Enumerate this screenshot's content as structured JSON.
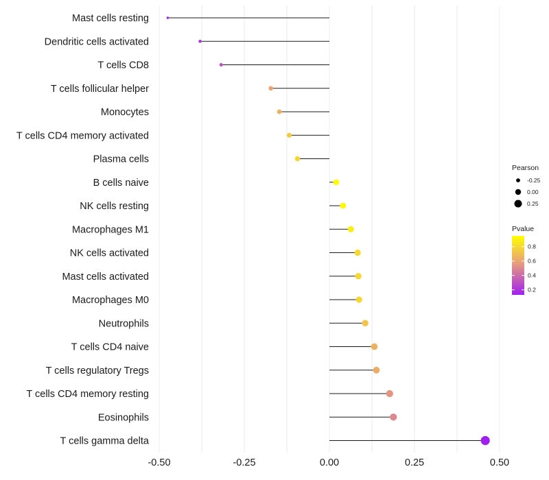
{
  "chart_data": {
    "type": "lollipop",
    "title": "",
    "xlabel": "",
    "ylabel": "",
    "xlim": [
      -0.5,
      0.5
    ],
    "x_ticks": [
      -0.5,
      -0.25,
      0.0,
      0.25,
      0.5
    ],
    "x_tick_labels": [
      "-0.50",
      "-0.25",
      "0.00",
      "0.25",
      "0.50"
    ],
    "baseline": 0,
    "grid": true,
    "categories": [
      "Mast cells resting",
      "Dendritic cells activated",
      "T cells CD8",
      "T cells follicular helper",
      "Monocytes",
      "T cells CD4 memory activated",
      "Plasma cells",
      "B cells naive",
      "NK cells resting",
      "Macrophages M1",
      "NK cells activated",
      "Mast cells activated",
      "Macrophages M0",
      "Neutrophils",
      "T cells CD4 naive",
      "T cells regulatory  Tregs ",
      "T cells CD4 memory resting",
      "Eosinophils",
      "T cells gamma delta"
    ],
    "values": [
      -0.475,
      -0.38,
      -0.318,
      -0.172,
      -0.147,
      -0.118,
      -0.094,
      0.02,
      0.04,
      0.063,
      0.083,
      0.085,
      0.087,
      0.105,
      0.132,
      0.138,
      0.177,
      0.188,
      0.458
    ],
    "pvalues": [
      0.13,
      0.2,
      0.3,
      0.6,
      0.65,
      0.75,
      0.8,
      0.95,
      0.92,
      0.88,
      0.8,
      0.8,
      0.8,
      0.72,
      0.65,
      0.63,
      0.55,
      0.5,
      0.13
    ],
    "size_legend": {
      "title": "Pearson",
      "labels": [
        "-0.25",
        "0.00",
        "0.25"
      ],
      "values": [
        -0.25,
        0.0,
        0.25
      ]
    },
    "color_legend": {
      "title": "Pvalue",
      "labels": [
        "0.8",
        "0.6",
        "0.4",
        "0.2"
      ],
      "values": [
        0.8,
        0.6,
        0.4,
        0.2
      ],
      "range": [
        0.13,
        0.95
      ],
      "low_color": "#a020f0",
      "mid_color": "#e8a07a",
      "high_color": "#ffff00"
    }
  }
}
